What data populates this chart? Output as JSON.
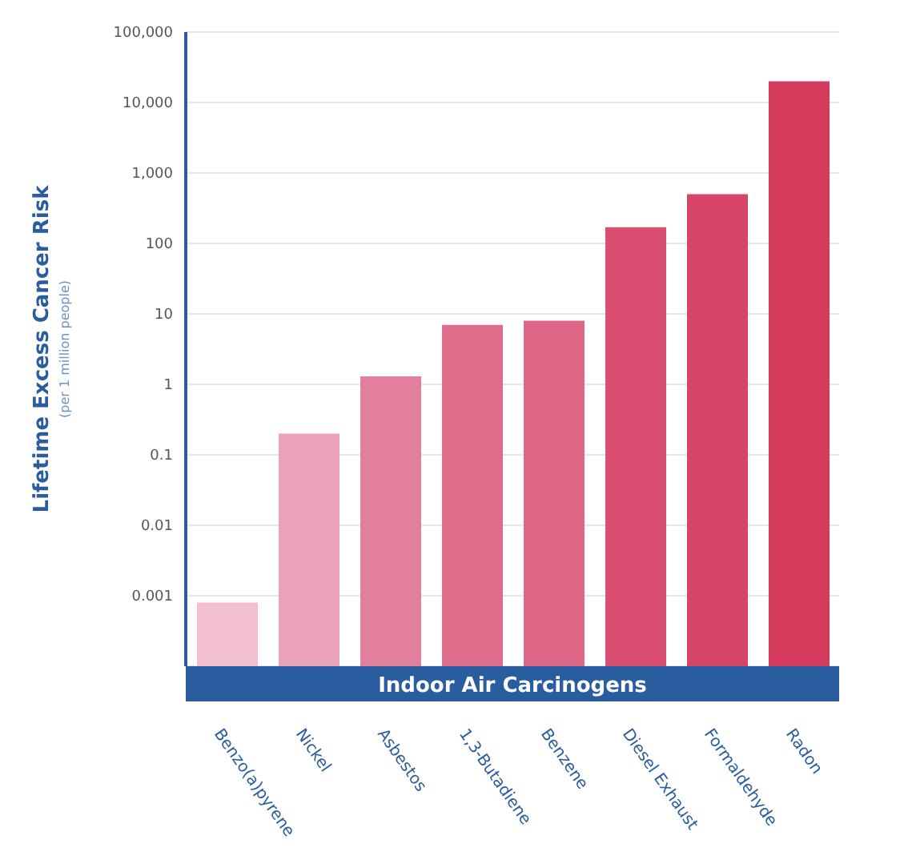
{
  "chart_data": {
    "type": "bar",
    "xlabel": "Indoor Air Carcinogens",
    "ylabel": "Lifetime Excess Cancer Risk",
    "annotations": [
      "(per 1 million people)"
    ],
    "categories": [
      "Benzo(a)pyrene",
      "Nickel",
      "Asbestos",
      "1,3-Butadiene",
      "Benzene",
      "Diesel Exhaust",
      "Formaldehyde",
      "Radon"
    ],
    "values": [
      0.0008,
      0.2,
      1.3,
      7,
      8,
      170,
      500,
      20000
    ],
    "colors": [
      "#f2bfd0",
      "#eaa3bb",
      "#e27f9d",
      "#e06c8c",
      "#de6686",
      "#da4f71",
      "#d74568",
      "#d53b5c"
    ],
    "log": true,
    "ylim": [
      0.0001,
      100000
    ],
    "yticks": [
      0.001,
      0.01,
      0.1,
      1,
      10,
      100,
      {
        "value": 1000,
        "label": "1,000"
      },
      {
        "value": 10000,
        "label": "10,000"
      },
      {
        "value": 100000,
        "label": "100,000"
      }
    ],
    "grid": "y"
  }
}
